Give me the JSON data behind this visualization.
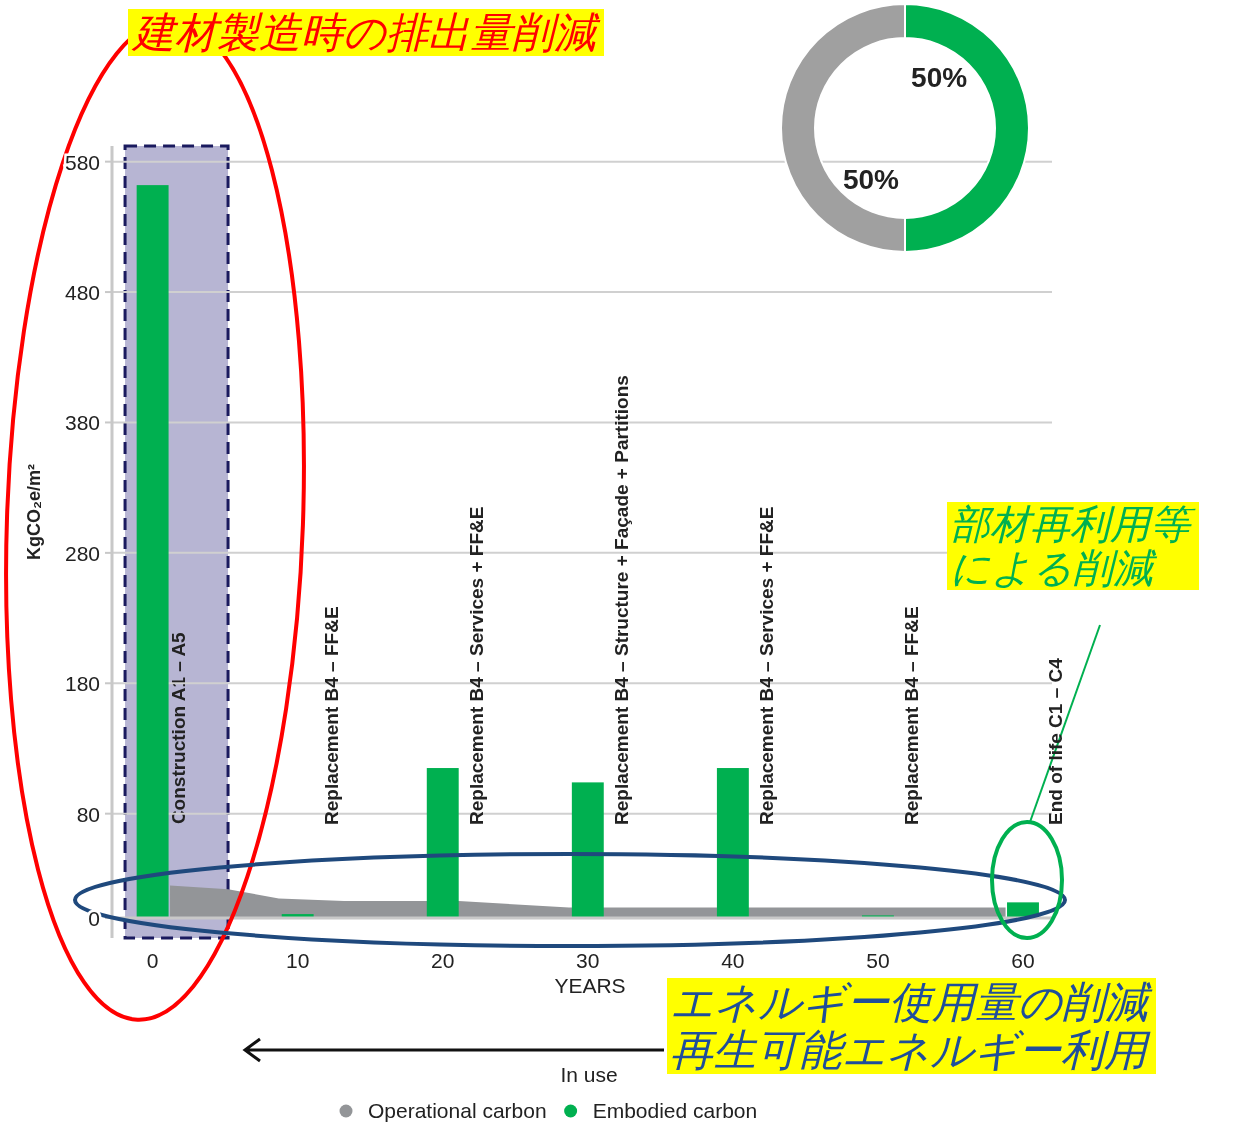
{
  "chart_data": [
    {
      "type": "bar",
      "xlabel": "YEARS",
      "ylabel": "KgCO₂e/m²",
      "xlim": [
        -2.8,
        62
      ],
      "xticks": [
        0,
        10,
        20,
        30,
        40,
        50,
        60
      ],
      "ylim": [
        0,
        592
      ],
      "yticks": [
        0,
        80,
        180,
        280,
        380,
        480,
        580
      ],
      "grid": "y",
      "legend": "bottom",
      "series": [
        {
          "name": "Operational carbon",
          "type": "area",
          "color": "#939598",
          "x": [
            1.2,
            5.2,
            8.7,
            13.2,
            21.1,
            28.7,
            58.8
          ],
          "values": [
            25,
            22,
            15,
            13,
            13,
            8,
            8
          ]
        },
        {
          "name": "Embodied carbon",
          "type": "bar",
          "color": "#00b050",
          "x": [
            0,
            10,
            20,
            30,
            40,
            50,
            60
          ],
          "values": [
            562,
            3,
            115,
            104,
            115,
            2,
            12
          ]
        }
      ],
      "bands": [
        {
          "axis": "x",
          "from": -1.9,
          "to": 5.2,
          "label": "Construction A1 – A5",
          "color": "#b7b5d3"
        }
      ],
      "annotations": [
        "Replacement B4 – FF&E",
        "Replacement B4 – Services + FF&E",
        "Replacement B4 – Structure + Façade + Partitions",
        "Replacement B4 – Services + FF&E",
        "Replacement B4 – FF&E",
        "End of life C1 – C4",
        "建材製造時の排出量削減",
        "部材再利用等による削減",
        "エネルギー使用量の削減再生可能エネルギー利用",
        "In use"
      ]
    },
    {
      "type": "donut",
      "categories": [
        null,
        null
      ],
      "values": [
        50,
        50
      ],
      "colors": [
        "#00b050",
        "#a0a0a0"
      ],
      "value_labels": [
        "50%",
        "50%"
      ]
    }
  ]
}
